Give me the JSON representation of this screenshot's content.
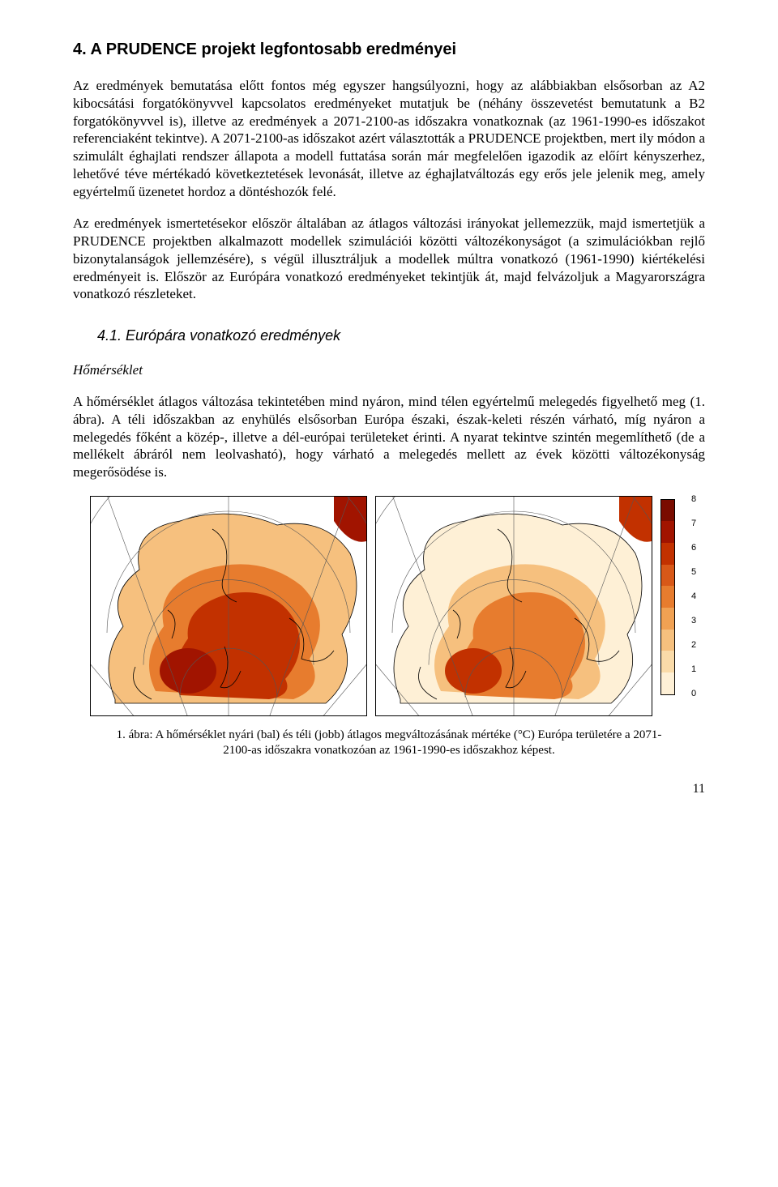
{
  "title": "4.  A PRUDENCE projekt legfontosabb eredményei",
  "p1": "Az eredmények bemutatása előtt fontos még egyszer hangsúlyozni, hogy az alábbiakban elsősorban az A2 kibocsátási forgatókönyvvel kapcsolatos eredményeket mutatjuk be (néhány összevetést bemutatunk a B2 forgatókönyvvel is), illetve az eredmények a 2071-2100-as időszakra vonatkoznak (az 1961-1990-es időszakot referenciaként tekintve). A 2071-2100-as időszakot azért választották a PRUDENCE projektben, mert ily módon a szimulált éghajlati rendszer állapota a modell futtatása során már megfelelően igazodik az előírt kényszerhez, lehetővé téve mértékadó következtetések levonását, illetve az éghajlatváltozás egy erős jele jelenik meg, amely egyértelmű üzenetet hordoz a döntéshozók felé.",
  "p2": "Az eredmények ismertetésekor először általában az átlagos változási irányokat jellemezzük, majd ismertetjük a PRUDENCE projektben alkalmazott modellek szimulációi közötti változékonyságot (a szimulációkban rejlő bizonytalanságok jellemzésére), s végül illusztráljuk a modellek múltra vonatkozó (1961-1990) kiértékelési eredményeit is. Először az Európára vonatkozó eredményeket tekintjük át, majd felvázoljuk a Magyarországra vonatkozó részleteket.",
  "h2": "4.1. Európára vonatkozó eredmények",
  "subhead": "Hőmérséklet",
  "p3": "A hőmérséklet átlagos változása tekintetében mind nyáron, mind télen egyértelmű melegedés figyelhető meg (1. ábra). A téli időszakban az enyhülés elsősorban Európa északi, észak-keleti részén várható, míg nyáron a melegedés főként a közép-, illetve a dél-európai területeket érinti. A nyarat tekintve szintén megemlíthető (de a mellékelt ábráról nem leolvasható), hogy várható a melegedés mellett az évek közötti változékonyság megerősödése is.",
  "caption": "1. ábra: A hőmérséklet nyári (bal) és téli (jobb) átlagos megváltozásának mértéke (°C) Európa területére a 2071-2100-as időszakra vonatkozóan az 1961-1990-es időszakhoz képest.",
  "pageno": "11",
  "colorbar": {
    "labels": [
      "8",
      "7",
      "6",
      "5",
      "4",
      "3",
      "2",
      "1",
      "0"
    ],
    "colors": [
      "#7a0c00",
      "#a11400",
      "#c23100",
      "#d85818",
      "#e77c2e",
      "#f0a153",
      "#f6c07e",
      "#fadba9",
      "#fef0d6"
    ]
  },
  "map": {
    "ocean": "#ffffff",
    "grat": "#555555",
    "coast": "#000000",
    "land_summer": [
      "#f6c07e",
      "#e77c2e",
      "#c23100",
      "#a11400"
    ],
    "land_winter": [
      "#fef0d6",
      "#f6c07e",
      "#e77c2e",
      "#c23100"
    ]
  }
}
